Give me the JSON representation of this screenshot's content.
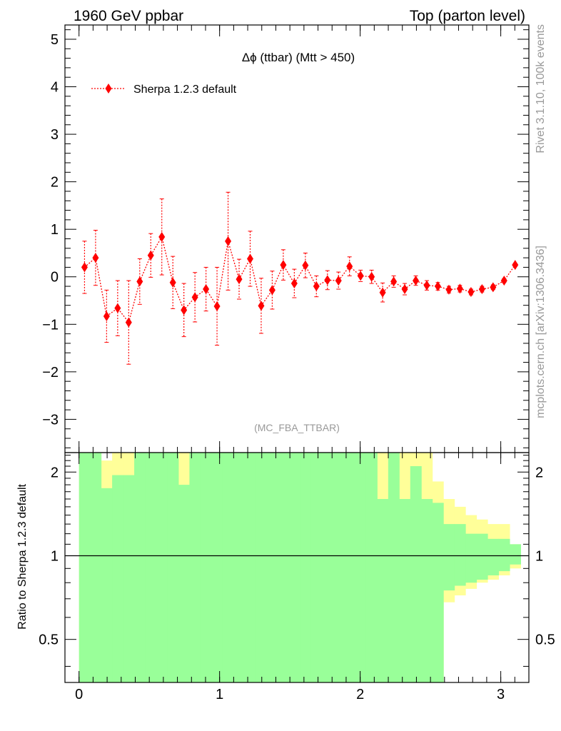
{
  "header": {
    "left": "1960 GeV ppbar",
    "right": "Top (parton level)"
  },
  "side": {
    "top": "Rivet 3.1.10,  100k events",
    "bottom": "mcplots.cern.ch [arXiv:1306.3436]"
  },
  "colors": {
    "series": "#ff0000",
    "band_inner": "#99ff99",
    "band_outer": "#ffff99",
    "watermark": "#999999"
  },
  "chart_data": [
    {
      "type": "scatter",
      "title": "Δϕ (ttbar) (Mtt > 450)",
      "watermark": "(MC_FBA_TTBAR)",
      "xlim": [
        -0.1,
        3.2
      ],
      "ylim": [
        -3.7,
        5.3
      ],
      "yticks": [
        -3,
        -2,
        -1,
        0,
        1,
        2,
        3,
        4,
        5
      ],
      "ytick_labels": [
        "−3",
        "−2",
        "−1",
        "0",
        "1",
        "2",
        "3",
        "4",
        "5"
      ],
      "legend": {
        "position": "top-left"
      },
      "series": [
        {
          "name": "Sherpa 1.2.3 default",
          "x": [
            0.0393,
            0.1178,
            0.1963,
            0.2749,
            0.3534,
            0.432,
            0.5105,
            0.589,
            0.6676,
            0.7461,
            0.8247,
            0.9032,
            0.9817,
            1.0603,
            1.1388,
            1.2174,
            1.2959,
            1.3744,
            1.453,
            1.5315,
            1.6101,
            1.6886,
            1.7671,
            1.8457,
            1.9242,
            2.0028,
            2.0813,
            2.1598,
            2.2384,
            2.3169,
            2.3955,
            2.474,
            2.5525,
            2.6311,
            2.7096,
            2.7882,
            2.8667,
            2.9452,
            3.0238,
            3.1023
          ],
          "y": [
            0.2,
            0.4,
            -0.83,
            -0.66,
            -0.96,
            -0.1,
            0.45,
            0.84,
            -0.12,
            -0.7,
            -0.43,
            -0.26,
            -0.62,
            0.75,
            -0.05,
            0.38,
            -0.61,
            -0.28,
            0.25,
            -0.14,
            0.24,
            -0.2,
            -0.07,
            -0.08,
            0.22,
            0.02,
            0.0,
            -0.33,
            -0.1,
            -0.26,
            -0.08,
            -0.18,
            -0.2,
            -0.27,
            -0.25,
            -0.32,
            -0.26,
            -0.22,
            -0.08,
            0.25
          ],
          "yerr": [
            0.55,
            0.58,
            0.55,
            0.58,
            0.88,
            0.48,
            0.46,
            0.8,
            0.55,
            0.56,
            0.52,
            0.46,
            0.82,
            1.03,
            0.42,
            0.58,
            0.58,
            0.4,
            0.32,
            0.3,
            0.26,
            0.22,
            0.2,
            0.18,
            0.2,
            0.12,
            0.14,
            0.2,
            0.12,
            0.12,
            0.1,
            0.1,
            0.08,
            0.07,
            0.07,
            0.06,
            0.06,
            0.05,
            0.04,
            0.03
          ]
        }
      ]
    },
    {
      "type": "area",
      "ylabel": "Ratio to Sherpa 1.2.3 default",
      "xlim": [
        -0.1,
        3.2
      ],
      "ylim": [
        0.35,
        2.35
      ],
      "xticks": [
        0,
        1,
        2,
        3
      ],
      "xtick_labels": [
        "0",
        "1",
        "2",
        "3"
      ],
      "yticks": [
        0.5,
        1,
        2
      ],
      "ytick_labels": [
        "0.5",
        "1",
        "2"
      ],
      "reference_line": 1,
      "bin_edges": [
        0.0,
        0.0785,
        0.1571,
        0.2356,
        0.3142,
        0.3927,
        0.4712,
        0.5498,
        0.6283,
        0.7069,
        0.7854,
        0.8639,
        0.9425,
        1.021,
        1.0996,
        1.1781,
        1.2566,
        1.3352,
        1.4137,
        1.4923,
        1.5708,
        1.6493,
        1.7279,
        1.8064,
        1.885,
        1.9635,
        2.042,
        2.1206,
        2.1991,
        2.2777,
        2.3562,
        2.4347,
        2.5133,
        2.5918,
        2.6704,
        2.7489,
        2.8274,
        2.906,
        2.9845,
        3.0631,
        3.1416
      ],
      "inner_band": {
        "upper": [
          2.4,
          2.4,
          1.75,
          1.95,
          1.95,
          2.4,
          2.4,
          2.4,
          2.4,
          1.8,
          2.4,
          2.4,
          2.4,
          2.4,
          2.4,
          2.4,
          2.4,
          2.4,
          2.4,
          2.4,
          2.4,
          2.4,
          2.4,
          2.4,
          2.4,
          2.4,
          2.4,
          1.6,
          2.4,
          1.6,
          2.1,
          1.6,
          1.55,
          1.3,
          1.3,
          1.2,
          1.2,
          1.15,
          1.15,
          1.1
        ],
        "lower": [
          0.0,
          0.0,
          0.0,
          0.0,
          0.0,
          0.0,
          0.0,
          0.0,
          0.0,
          0.0,
          0.0,
          0.0,
          0.0,
          0.0,
          0.0,
          0.0,
          0.0,
          0.0,
          0.0,
          0.0,
          0.0,
          0.0,
          0.0,
          0.0,
          0.0,
          0.0,
          0.0,
          0.0,
          0.0,
          0.0,
          0.0,
          0.0,
          0.0,
          0.75,
          0.78,
          0.8,
          0.82,
          0.85,
          0.88,
          0.93
        ]
      },
      "outer_band": {
        "upper": [
          2.4,
          2.4,
          2.2,
          2.4,
          2.4,
          2.4,
          2.4,
          2.4,
          2.4,
          2.4,
          2.4,
          2.4,
          2.4,
          2.4,
          2.4,
          2.4,
          2.4,
          2.4,
          2.4,
          2.4,
          2.4,
          2.4,
          2.4,
          2.4,
          2.4,
          2.4,
          2.4,
          2.4,
          2.4,
          2.4,
          2.4,
          2.4,
          1.85,
          1.6,
          1.5,
          1.4,
          1.35,
          1.3,
          1.3,
          1.1
        ],
        "lower": [
          0.0,
          0.0,
          0.0,
          0.0,
          0.0,
          0.0,
          0.0,
          0.0,
          0.0,
          0.0,
          0.0,
          0.0,
          0.0,
          0.0,
          0.0,
          0.0,
          0.0,
          0.0,
          0.0,
          0.0,
          0.0,
          0.0,
          0.0,
          0.0,
          0.0,
          0.0,
          0.0,
          0.0,
          0.0,
          0.0,
          0.0,
          0.0,
          0.33,
          0.68,
          0.72,
          0.76,
          0.8,
          0.82,
          0.85,
          0.9
        ]
      }
    }
  ]
}
